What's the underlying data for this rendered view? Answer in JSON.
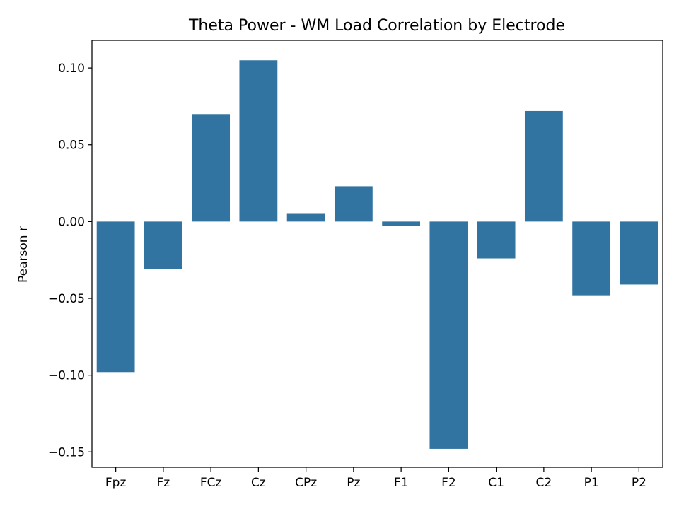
{
  "chart_data": {
    "type": "bar",
    "title": "Theta Power - WM Load Correlation by Electrode",
    "xlabel": "",
    "ylabel": "Pearson r",
    "categories": [
      "Fpz",
      "Fz",
      "FCz",
      "Cz",
      "CPz",
      "Pz",
      "F1",
      "F2",
      "C1",
      "C2",
      "P1",
      "P2"
    ],
    "values": [
      -0.098,
      -0.031,
      0.07,
      0.105,
      0.005,
      0.023,
      -0.003,
      -0.148,
      -0.024,
      0.072,
      -0.048,
      -0.041
    ],
    "ylim": [
      -0.16,
      0.118
    ],
    "yticks": [
      0.1,
      0.05,
      0.0,
      -0.05,
      -0.1,
      -0.15
    ],
    "ytick_labels": [
      "0.10",
      "0.05",
      "0.00",
      "−0.05",
      "−0.10",
      "−0.15"
    ],
    "bar_color": "#3274a1",
    "grid": false,
    "legend": "none"
  }
}
